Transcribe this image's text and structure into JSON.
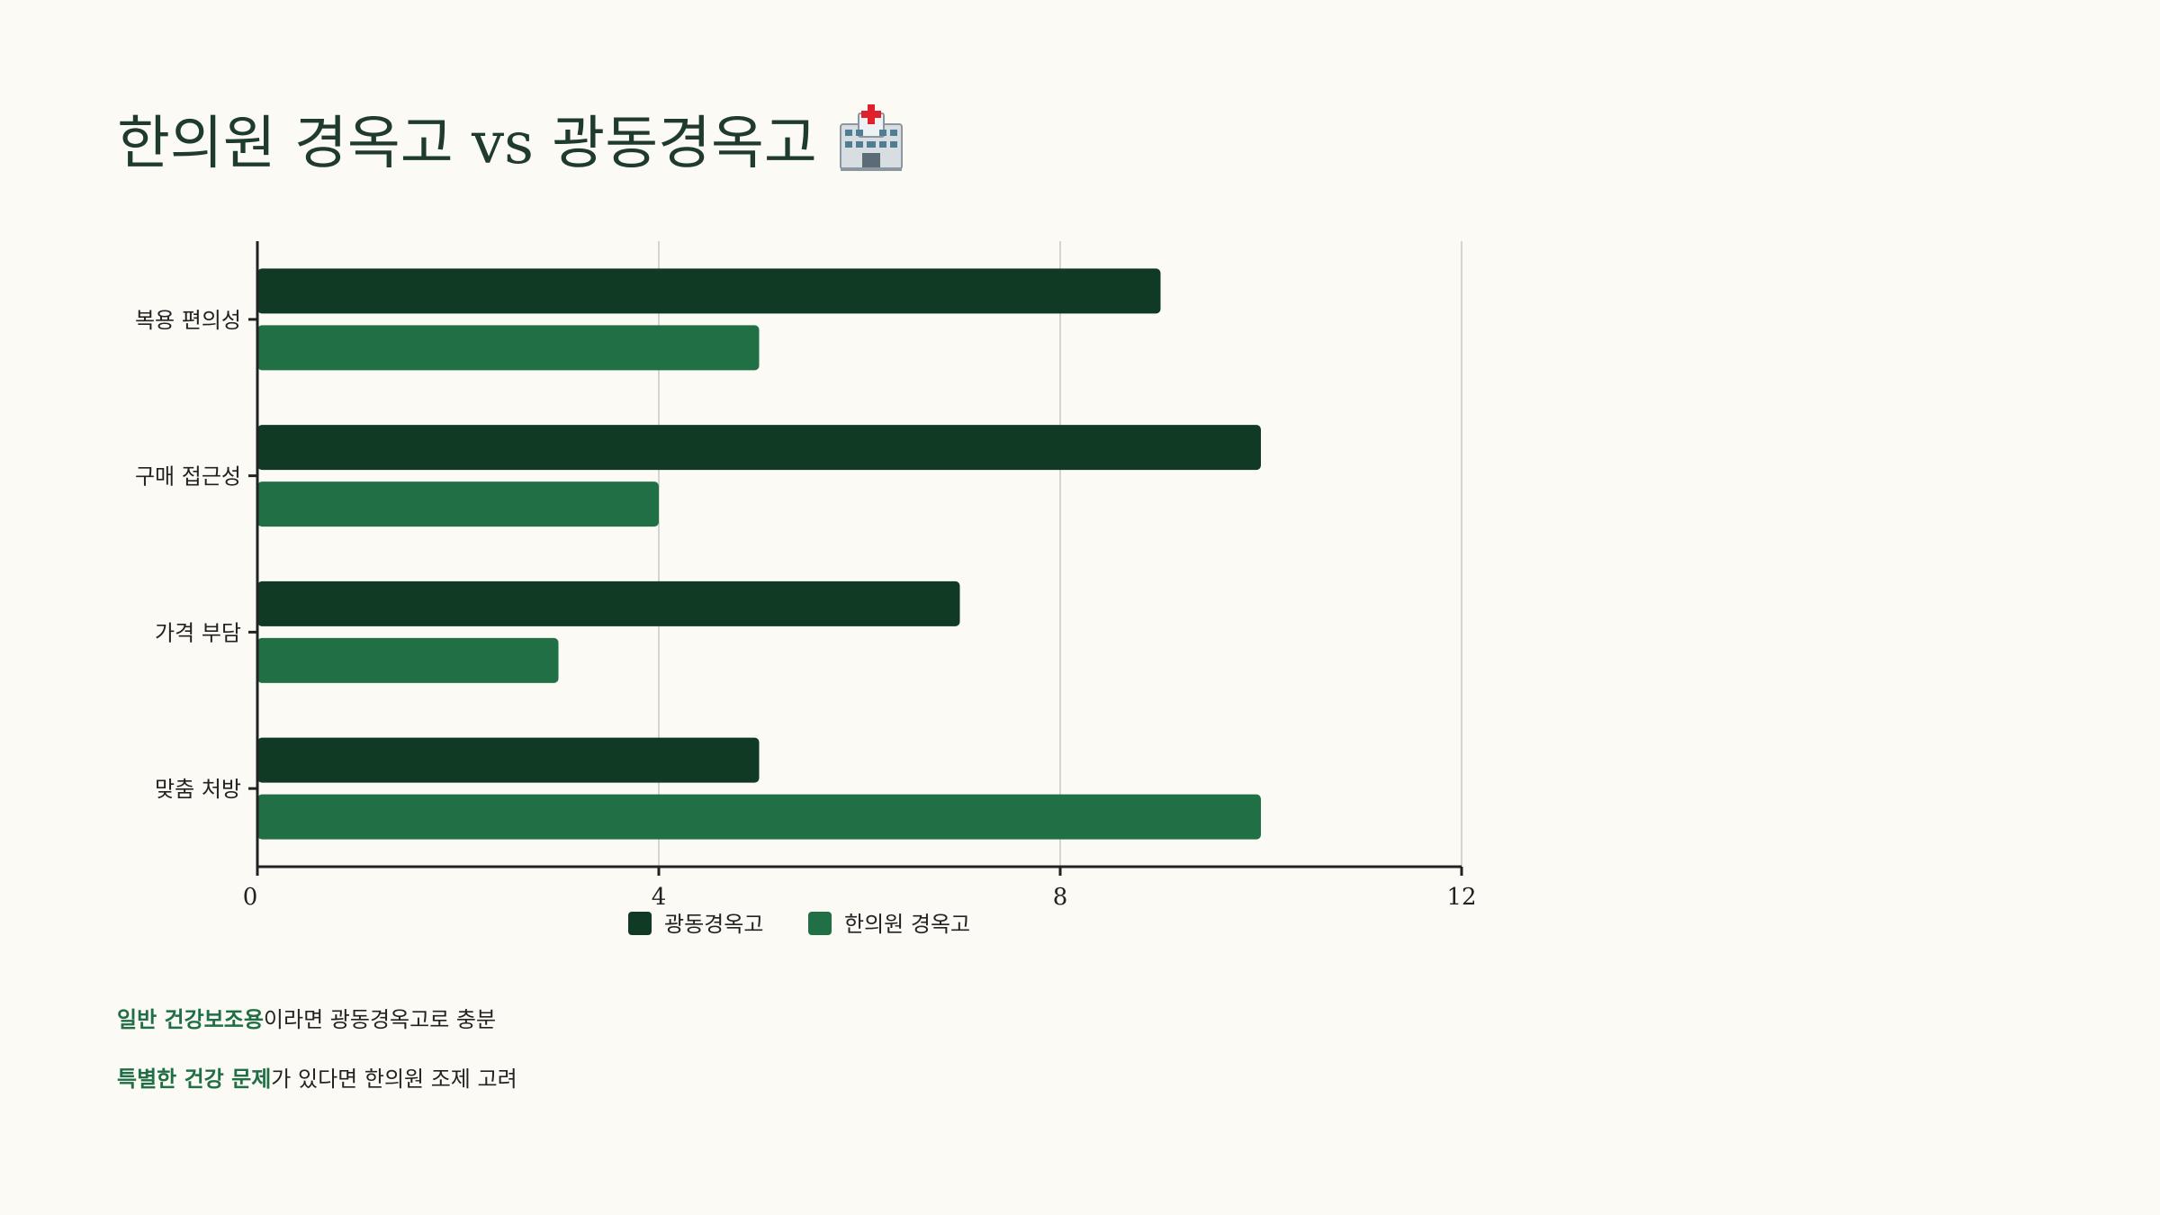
{
  "header": {
    "title": "한의원 경옥고 vs 광동경옥고",
    "icon": "hospital-icon"
  },
  "colors": {
    "background": "#fbfaf5",
    "series_dark": "#113a24",
    "series_green": "#217045",
    "grid": "#d4d4d0",
    "axis": "#222222",
    "accent_text": "#1f6e44"
  },
  "chart_data": {
    "type": "bar",
    "orientation": "horizontal",
    "categories": [
      "복용 편의성",
      "구매 접근성",
      "가격 부담",
      "맞춤 처방"
    ],
    "series": [
      {
        "name": "광동경옥고",
        "values": [
          9,
          10,
          7,
          5
        ]
      },
      {
        "name": "한의원 경옥고",
        "values": [
          5,
          4,
          3,
          10
        ]
      }
    ],
    "xlim": [
      0,
      12
    ],
    "xticks": [
      0,
      4,
      8,
      12
    ],
    "grid": true,
    "legend": "bottom-center"
  },
  "notes": [
    {
      "highlight": "일반 건강보조용",
      "text": "이라면 광동경옥고로 충분"
    },
    {
      "highlight": "특별한 건강 문제",
      "text": "가 있다면 한의원 조제 고려"
    }
  ]
}
